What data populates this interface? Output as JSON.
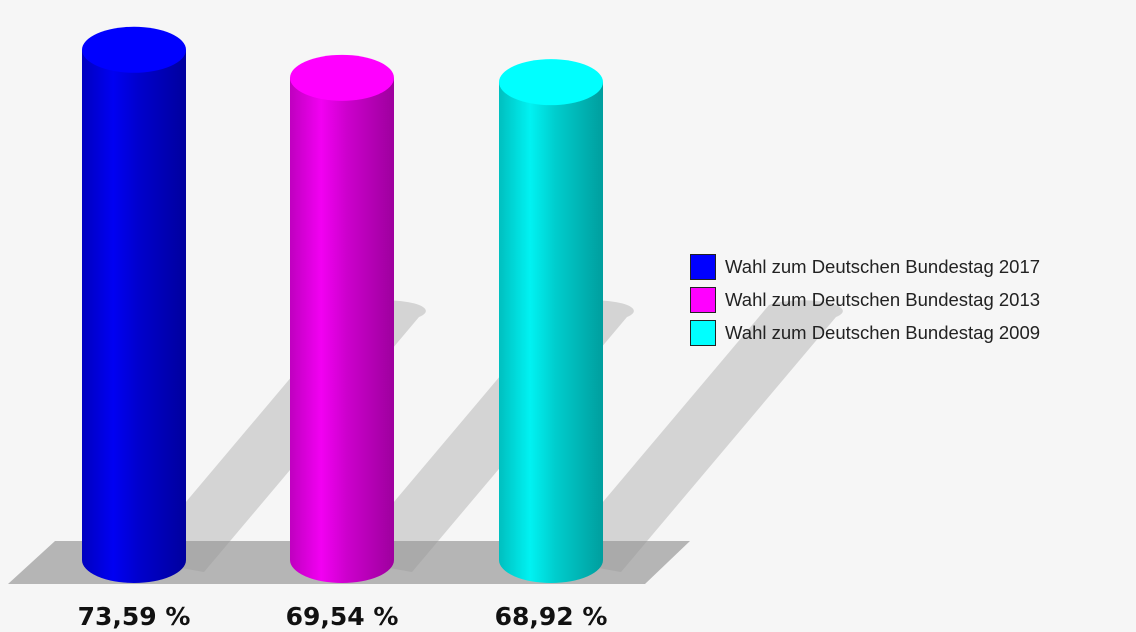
{
  "chart_data": {
    "type": "bar",
    "style": "3d-cylinder",
    "categories": [
      "Wahl zum Deutschen Bundestag 2017",
      "Wahl zum Deutschen Bundestag 2013",
      "Wahl zum Deutschen Bundestag 2009"
    ],
    "values": [
      73.59,
      69.54,
      68.92
    ],
    "value_labels": [
      "73,59 %",
      "69,54 %",
      "68,92 %"
    ],
    "colors": [
      "#0000ff",
      "#ff00ff",
      "#00ffff"
    ],
    "ylim": [
      0,
      75
    ],
    "title": "",
    "xlabel": "",
    "ylabel": "",
    "grid": false,
    "legend": {
      "position": "right",
      "entries": [
        {
          "label": "Wahl zum Deutschen Bundestag 2017",
          "color": "#0000ff"
        },
        {
          "label": "Wahl zum Deutschen Bundestag 2013",
          "color": "#ff00ff"
        },
        {
          "label": "Wahl zum Deutschen Bundestag 2009",
          "color": "#00ffff"
        }
      ]
    }
  }
}
